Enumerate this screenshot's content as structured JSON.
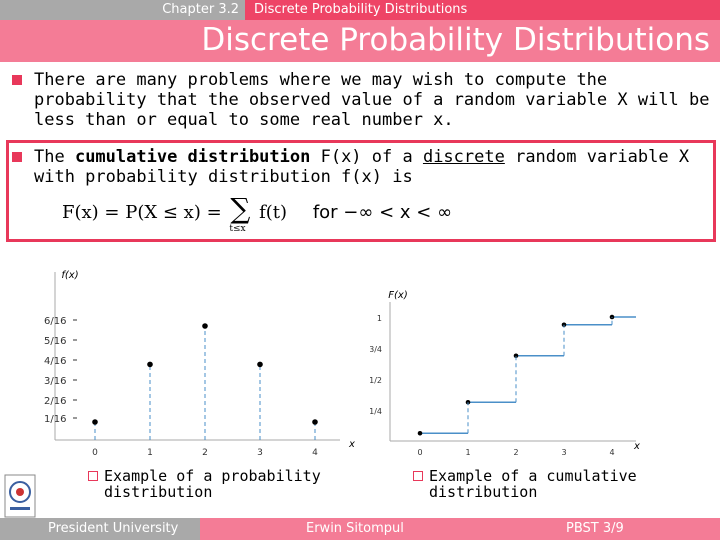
{
  "header": {
    "chapter": "Chapter 3.2",
    "section": "Discrete Probability Distributions"
  },
  "title": "Discrete Probability Distributions",
  "bullets": {
    "first": "There are many problems where we may wish to compute the probability that the observed value of a random variable X will be less than or equal to some real number x.",
    "second_pre": "The ",
    "second_bold": "cumulative distribution",
    "second_mid": " F(x) of a ",
    "second_underlined": "discrete",
    "second_post": " random variable X with probability distribution f(x) is"
  },
  "formula": {
    "lhs": "F(x) = P(X ≤ x) = ",
    "sigma": "∑",
    "sub": "t≤x",
    "rhs": "f(t)",
    "cond": "for −∞ < x < ∞"
  },
  "captions": {
    "left": "Example of a probability distribution",
    "right": "Example of a cumulative distribution"
  },
  "footer": {
    "left": "President University",
    "center": "Erwin Sitompul",
    "right": "PBST 3/9"
  },
  "colors": {
    "accent": "#e8385a",
    "title_bar": "#f47c96",
    "grey": "#a9a9a9"
  },
  "chart_data": [
    {
      "type": "scatter",
      "ylabel": "f(x)",
      "xlabel": "x",
      "x": [
        0,
        1,
        2,
        3,
        4
      ],
      "values": [
        0.0625,
        0.25,
        0.375,
        0.25,
        0.0625
      ],
      "xticks": [
        "0",
        "1",
        "2",
        "3",
        "4"
      ],
      "yticks": [
        "1/16",
        "2/16",
        "3/16",
        "4/16",
        "5/16",
        "6/16"
      ]
    },
    {
      "type": "line",
      "ylabel": "F(x)",
      "xlabel": "x",
      "steps": [
        {
          "from": 0,
          "to": 1,
          "value": 0.0625
        },
        {
          "from": 1,
          "to": 2,
          "value": 0.3125
        },
        {
          "from": 2,
          "to": 3,
          "value": 0.6875
        },
        {
          "from": 3,
          "to": 4,
          "value": 0.9375
        },
        {
          "from": 4,
          "to": 4.5,
          "value": 1.0
        }
      ],
      "xticks": [
        "0",
        "1",
        "2",
        "3",
        "4"
      ],
      "yticks": [
        "1/4",
        "1/2",
        "3/4",
        "1"
      ]
    }
  ]
}
